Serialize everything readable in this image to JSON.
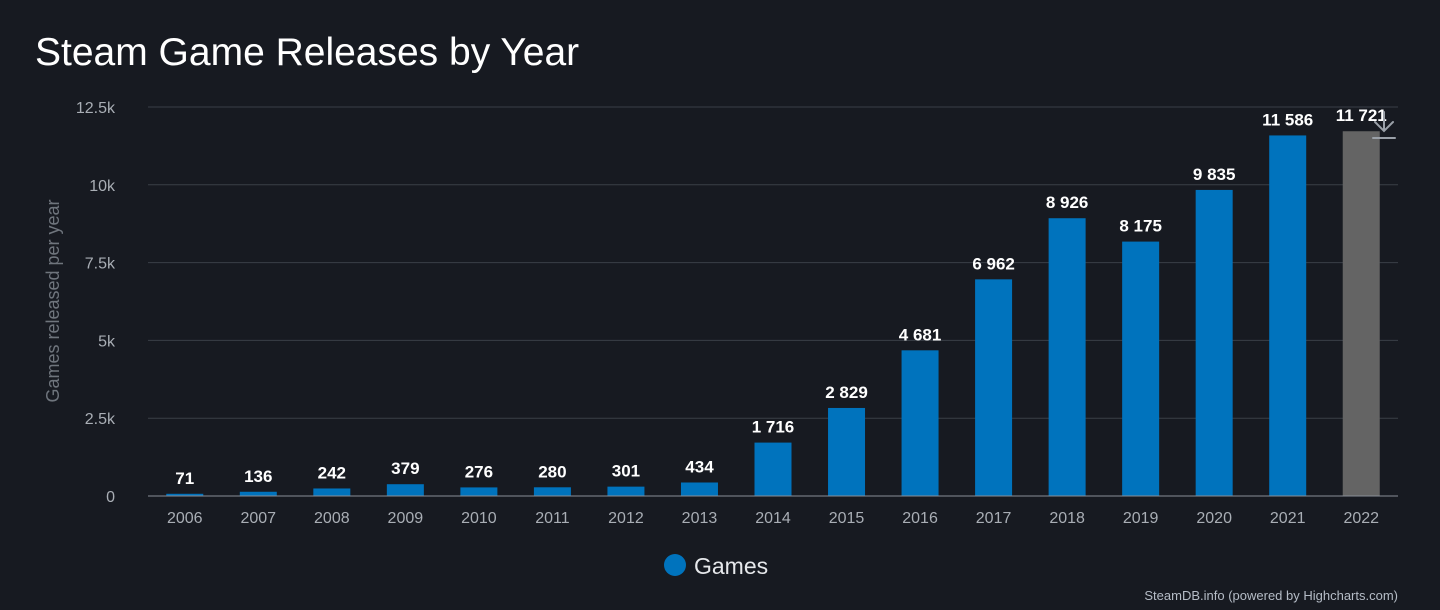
{
  "chart_data": {
    "type": "bar",
    "title": "Steam Game Releases by Year",
    "ylabel": "Games released per year",
    "xlabel": "",
    "ylim": [
      0,
      12500
    ],
    "yticks": [
      0,
      2500,
      5000,
      7500,
      10000,
      12500
    ],
    "ytick_labels": [
      "0",
      "2.5k",
      "5k",
      "7.5k",
      "10k",
      "12.5k"
    ],
    "categories": [
      "2006",
      "2007",
      "2008",
      "2009",
      "2010",
      "2011",
      "2012",
      "2013",
      "2014",
      "2015",
      "2016",
      "2017",
      "2018",
      "2019",
      "2020",
      "2021",
      "2022"
    ],
    "series": [
      {
        "name": "Games",
        "color": "#0073bd",
        "values": [
          71,
          136,
          242,
          379,
          276,
          280,
          301,
          434,
          1716,
          2829,
          4681,
          6962,
          8926,
          8175,
          9835,
          11586,
          11721
        ],
        "value_labels": [
          "71",
          "136",
          "242",
          "379",
          "276",
          "280",
          "301",
          "434",
          "1 716",
          "2 829",
          "4 681",
          "6 962",
          "8 926",
          "8 175",
          "9 835",
          "11 586",
          "11 721"
        ]
      }
    ],
    "highlight": {
      "category": "2022",
      "color": "#646464"
    },
    "grid": true,
    "legend": "bottom-center"
  },
  "footer": {
    "credit": "SteamDB.info (powered by Highcharts.com)"
  },
  "icons": {
    "export": "download-arrow-icon"
  }
}
